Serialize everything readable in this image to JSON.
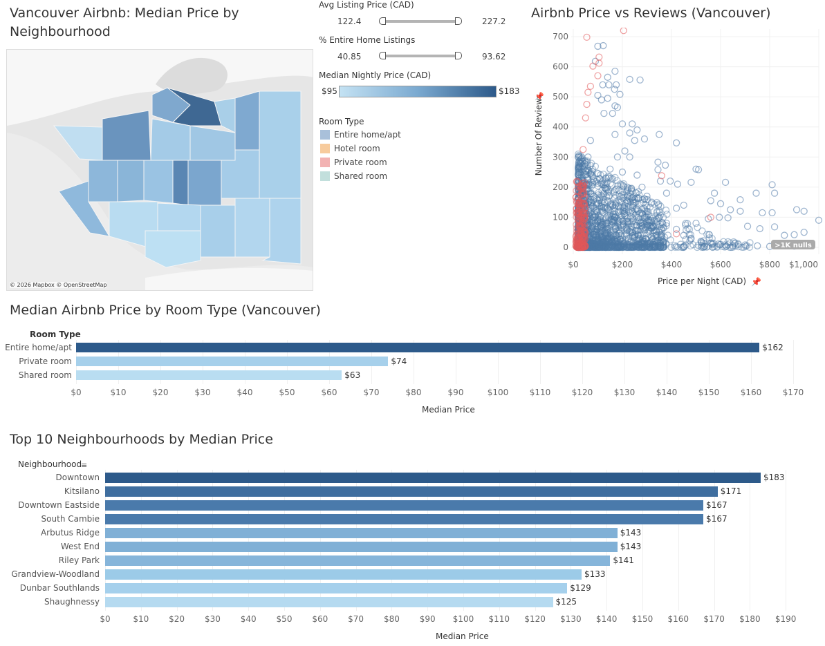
{
  "map": {
    "title": "Vancouver Airbnb: Median Price by Neighbourhood",
    "attribution": "© 2026 Mapbox © OpenStreetMap"
  },
  "filters": {
    "avg_price": {
      "label": "Avg Listing Price (CAD)",
      "min": "122.4",
      "max": "227.2"
    },
    "entire_home": {
      "label": "% Entire Home Listings",
      "min": "40.85",
      "max": "93.62"
    },
    "color_legend": {
      "label": "Median Nightly Price (CAD)",
      "min": "$95",
      "max": "$183",
      "color_low": "#c4e2f3",
      "color_high": "#2d5a8a"
    }
  },
  "room_legend": {
    "title": "Room Type",
    "items": [
      {
        "label": "Entire home/apt",
        "color": "#a9c0da"
      },
      {
        "label": "Hotel room",
        "color": "#f7cb9d"
      },
      {
        "label": "Private room",
        "color": "#f2b2b2"
      },
      {
        "label": "Shared room",
        "color": "#c2dfdc"
      }
    ]
  },
  "chart_data": [
    {
      "type": "scatter",
      "title": "Airbnb Price vs Reviews (Vancouver)",
      "xlabel": "Price per Night (CAD)",
      "ylabel": "Number Of Reviews",
      "xlim": [
        0,
        1000
      ],
      "ylim": [
        0,
        700
      ],
      "x_ticks": [
        "$0",
        "$200",
        "$400",
        "$600",
        "$800",
        "$1,000"
      ],
      "y_ticks": [
        "0",
        "100",
        "200",
        "300",
        "400",
        "500",
        "600",
        "700"
      ],
      "null_badge": ">1K nulls",
      "grid": true,
      "series": [
        {
          "name": "Entire home/apt",
          "color": "#4e79a7",
          "points": [
            [
              100,
              668
            ],
            [
              122,
              670
            ],
            [
              90,
              618
            ],
            [
              170,
              585
            ],
            [
              230,
              558
            ],
            [
              272,
              556
            ],
            [
              140,
              565
            ],
            [
              120,
              540
            ],
            [
              145,
              540
            ],
            [
              175,
              540
            ],
            [
              168,
              525
            ],
            [
              190,
              508
            ],
            [
              100,
              505
            ],
            [
              140,
              495
            ],
            [
              115,
              490
            ],
            [
              170,
              470
            ],
            [
              180,
              465
            ],
            [
              125,
              445
            ],
            [
              160,
              445
            ],
            [
              200,
              410
            ],
            [
              240,
              410
            ],
            [
              260,
              390
            ],
            [
              230,
              380
            ],
            [
              170,
              375
            ],
            [
              350,
              375
            ],
            [
              420,
              347
            ],
            [
              290,
              360
            ],
            [
              250,
              355
            ],
            [
              70,
              355
            ],
            [
              60,
              300
            ],
            [
              345,
              283
            ],
            [
              375,
              273
            ],
            [
              500,
              260
            ],
            [
              510,
              258
            ],
            [
              345,
              258
            ],
            [
              355,
              220
            ],
            [
              380,
              180
            ],
            [
              395,
              220
            ],
            [
              425,
              210
            ],
            [
              575,
              180
            ],
            [
              620,
              216
            ],
            [
              480,
              216
            ],
            [
              810,
              208
            ],
            [
              820,
              180
            ],
            [
              745,
              180
            ],
            [
              680,
              158
            ],
            [
              560,
              155
            ],
            [
              600,
              145
            ],
            [
              640,
              125
            ],
            [
              680,
              120
            ],
            [
              770,
              115
            ],
            [
              810,
              115
            ],
            [
              910,
              125
            ],
            [
              940,
              120
            ],
            [
              1000,
              90
            ],
            [
              595,
              100
            ],
            [
              630,
              98
            ],
            [
              550,
              95
            ],
            [
              710,
              70
            ],
            [
              760,
              62
            ],
            [
              820,
              68
            ],
            [
              940,
              50
            ],
            [
              900,
              42
            ],
            [
              860,
              40
            ],
            [
              500,
              80
            ],
            [
              420,
              130
            ],
            [
              450,
              140
            ],
            [
              300,
              170
            ],
            [
              320,
              150
            ],
            [
              280,
              200
            ],
            [
              260,
              240
            ],
            [
              230,
              300
            ],
            [
              210,
              320
            ],
            [
              180,
              300
            ],
            [
              150,
              260
            ],
            [
              120,
              220
            ],
            [
              200,
              250
            ],
            [
              220,
              200
            ],
            [
              250,
              160
            ],
            [
              300,
              120
            ],
            [
              350,
              100
            ],
            [
              380,
              80
            ],
            [
              420,
              60
            ],
            [
              450,
              40
            ],
            [
              480,
              30
            ],
            [
              520,
              20
            ],
            [
              560,
              15
            ],
            [
              600,
              10
            ],
            [
              650,
              5
            ],
            [
              700,
              8
            ],
            [
              750,
              5
            ],
            [
              800,
              3
            ],
            [
              850,
              6
            ],
            [
              900,
              4
            ]
          ]
        },
        {
          "name": "Private room",
          "color": "#e15759",
          "points": [
            [
              55,
              698
            ],
            [
              105,
              632
            ],
            [
              80,
              602
            ],
            [
              105,
              612
            ],
            [
              100,
              570
            ],
            [
              70,
              535
            ],
            [
              60,
              515
            ],
            [
              55,
              475
            ],
            [
              50,
              430
            ],
            [
              40,
              325
            ],
            [
              30,
              148
            ],
            [
              25,
              125
            ],
            [
              28,
              65
            ],
            [
              40,
              205
            ],
            [
              45,
              215
            ],
            [
              35,
              175
            ],
            [
              360,
              238
            ],
            [
              560,
              100
            ],
            [
              420,
              45
            ],
            [
              15,
              10
            ],
            [
              20,
              30
            ],
            [
              205,
              720
            ]
          ]
        }
      ]
    },
    {
      "type": "bar",
      "title": "Median Airbnb Price by Room Type (Vancouver)",
      "category_header": "Room Type",
      "xlabel": "Median Price",
      "xlim": [
        0,
        175
      ],
      "x_ticks": [
        "$0",
        "$10",
        "$20",
        "$30",
        "$40",
        "$50",
        "$60",
        "$70",
        "$80",
        "$90",
        "$100",
        "$110",
        "$120",
        "$130",
        "$140",
        "$150",
        "$160",
        "$170"
      ],
      "categories": [
        "Entire home/apt",
        "Private room",
        "Shared room"
      ],
      "values": [
        162,
        74,
        63
      ],
      "labels": [
        "$162",
        "$74",
        "$63"
      ],
      "colors": [
        "#2d5a8a",
        "#a6d0eb",
        "#b9ddf1"
      ]
    },
    {
      "type": "bar",
      "title": "Top 10 Neighbourhoods by Median Price",
      "category_header": "Neighbourhood",
      "xlabel": "Median Price",
      "xlim": [
        0,
        197
      ],
      "x_ticks": [
        "$0",
        "$10",
        "$20",
        "$30",
        "$40",
        "$50",
        "$60",
        "$70",
        "$80",
        "$90",
        "$100",
        "$110",
        "$120",
        "$130",
        "$140",
        "$150",
        "$160",
        "$170",
        "$180",
        "$190"
      ],
      "categories": [
        "Downtown",
        "Kitsilano",
        "Downtown Eastside",
        "South Cambie",
        "Arbutus Ridge",
        "West End",
        "Riley Park",
        "Grandview-Woodland",
        "Dunbar Southlands",
        "Shaughnessy"
      ],
      "values": [
        183,
        171,
        167,
        167,
        143,
        143,
        141,
        133,
        129,
        125
      ],
      "labels": [
        "$183",
        "$171",
        "$167",
        "$167",
        "$143",
        "$143",
        "$141",
        "$133",
        "$129",
        "$125"
      ],
      "colors": [
        "#2d5a8a",
        "#3f6e9f",
        "#4a7aab",
        "#4a7aab",
        "#80b0d6",
        "#80b0d6",
        "#86b5da",
        "#9ccbe8",
        "#a5d0ec",
        "#b5daf0"
      ]
    }
  ]
}
